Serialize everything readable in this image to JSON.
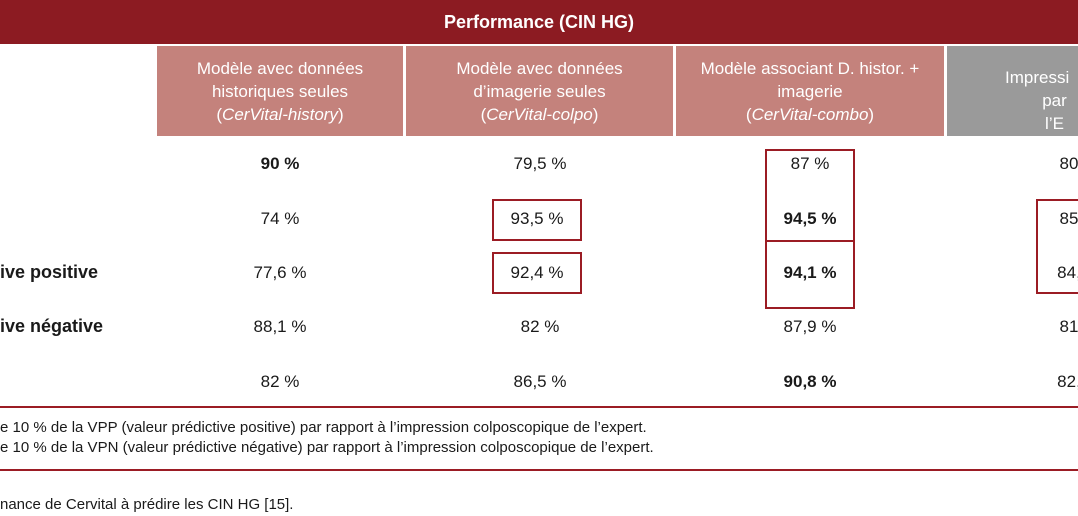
{
  "title": "Performance (CIN HG)",
  "columns": [
    {
      "line1": "Modèle avec données",
      "line2": "historiques seules",
      "paren_open": "(",
      "italic": "CerVital-history",
      "paren_close": ")"
    },
    {
      "line1": "Modèle avec données",
      "line2": "d’imagerie seules",
      "paren_open": "(",
      "italic": "CerVital-colpo",
      "paren_close": ")"
    },
    {
      "line1": "Modèle associant D. histor. +",
      "line2": "imagerie",
      "paren_open": "(",
      "italic": "CerVital-combo",
      "paren_close": ")"
    },
    {
      "line1": "Impressi",
      "line2": "par l’E"
    }
  ],
  "row_labels": [
    "",
    "",
    "ive positive",
    "ive négative",
    ""
  ],
  "rows": [
    [
      "90 %",
      "79,5 %",
      "87 %",
      "80"
    ],
    [
      "74 %",
      "93,5 %",
      "94,5 %",
      "85"
    ],
    [
      "77,6 %",
      "92,4 %",
      "94,1 %",
      "84,"
    ],
    [
      "88,1 %",
      "82 %",
      "87,9 %",
      "81"
    ],
    [
      "82 %",
      "86,5 %",
      "90,8 %",
      "82,"
    ]
  ],
  "notes": [
    "e 10 % de la VPP (valeur prédictive positive) par rapport à l’impression colposcopique de l’expert.",
    "e 10 % de la VPN (valeur prédictive négative) par rapport à l’impression colposcopique de l’expert."
  ],
  "caption": "nance de Cervital à prédire les CIN HG [15]."
}
